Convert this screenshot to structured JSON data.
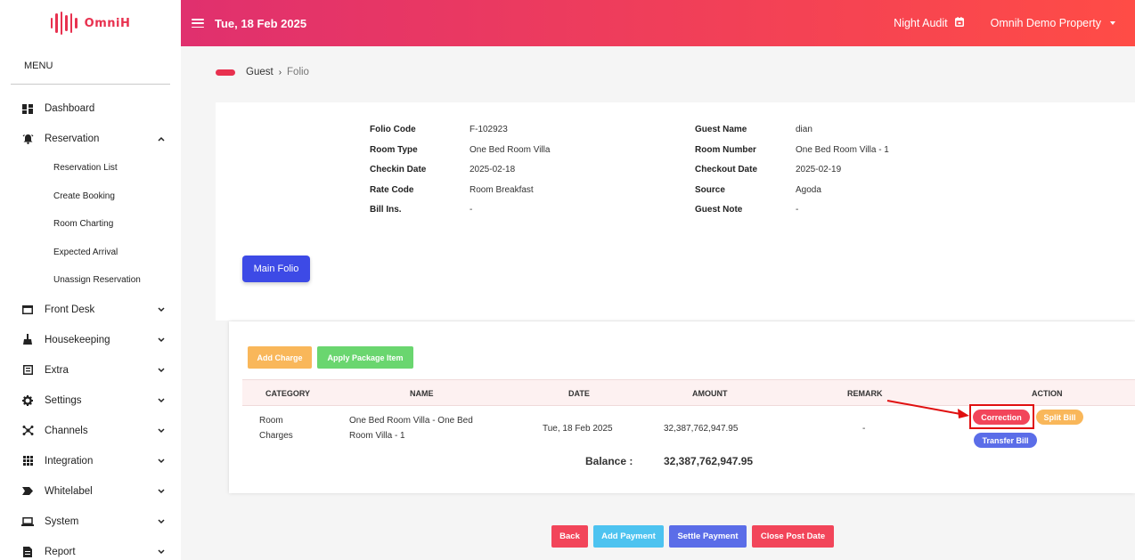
{
  "brand": {
    "name": "OmniH",
    "color": "#e8314f"
  },
  "header": {
    "date": "Tue, 18 Feb 2025",
    "night_audit": "Night Audit",
    "property": "Omnih Demo Property",
    "menu_icon": "hamburger-icon",
    "calendar_icon": "calendar-icon"
  },
  "sidebar": {
    "menu_title": "MENU",
    "items": [
      {
        "label": "Dashboard",
        "icon": "dashboard-icon",
        "chevron": ""
      },
      {
        "label": "Reservation",
        "icon": "bell-icon",
        "chevron": "up"
      },
      {
        "label": "Front Desk",
        "icon": "window-icon",
        "chevron": "down"
      },
      {
        "label": "Housekeeping",
        "icon": "broom-icon",
        "chevron": "down"
      },
      {
        "label": "Extra",
        "icon": "list-icon",
        "chevron": "down"
      },
      {
        "label": "Settings",
        "icon": "gear-icon",
        "chevron": "down"
      },
      {
        "label": "Channels",
        "icon": "network-icon",
        "chevron": "down"
      },
      {
        "label": "Integration",
        "icon": "grid-icon",
        "chevron": "down"
      },
      {
        "label": "Whitelabel",
        "icon": "tag-icon",
        "chevron": "down"
      },
      {
        "label": "System",
        "icon": "laptop-icon",
        "chevron": "down"
      },
      {
        "label": "Report",
        "icon": "report-icon",
        "chevron": "down"
      }
    ],
    "reservation_sub": [
      "Reservation List",
      "Create Booking",
      "Room Charting",
      "Expected Arrival",
      "Unassign Reservation"
    ]
  },
  "breadcrumb": {
    "parent": "Guest",
    "separator": "›",
    "current": "Folio"
  },
  "folio": {
    "left": [
      {
        "label": "Folio Code",
        "value": "F-102923"
      },
      {
        "label": "Room Type",
        "value": "One Bed Room Villa"
      },
      {
        "label": "Checkin Date",
        "value": "2025-02-18"
      },
      {
        "label": "Rate Code",
        "value": "Room Breakfast"
      },
      {
        "label": "Bill Ins.",
        "value": "-"
      }
    ],
    "right": [
      {
        "label": "Guest Name",
        "value": "dian"
      },
      {
        "label": "Room Number",
        "value": "One Bed Room Villa - 1"
      },
      {
        "label": "Checkout Date",
        "value": "2025-02-19"
      },
      {
        "label": "Source",
        "value": "Agoda"
      },
      {
        "label": "Guest Note",
        "value": "-"
      }
    ],
    "main_folio_label": "Main Folio"
  },
  "charges": {
    "add_charge": "Add Charge",
    "apply_package": "Apply Package Item",
    "columns": [
      "CATEGORY",
      "NAME",
      "DATE",
      "AMOUNT",
      "REMARK",
      "ACTION"
    ],
    "rows": [
      {
        "category_line1": "Room",
        "category_line2": "Charges",
        "name_line1": "One Bed Room Villa - One Bed",
        "name_line2": "Room Villa - 1",
        "date": "Tue, 18 Feb 2025",
        "amount": "32,387,762,947.95",
        "remark": "-",
        "actions": {
          "correction": "Correction",
          "split": "Split Bill",
          "transfer": "Transfer Bill"
        }
      }
    ],
    "balance_label": "Balance :",
    "balance_value": "32,387,762,947.95"
  },
  "footer_buttons": {
    "back": "Back",
    "add_payment": "Add Payment",
    "settle_payment": "Settle Payment",
    "close_post_date": "Close Post Date"
  }
}
